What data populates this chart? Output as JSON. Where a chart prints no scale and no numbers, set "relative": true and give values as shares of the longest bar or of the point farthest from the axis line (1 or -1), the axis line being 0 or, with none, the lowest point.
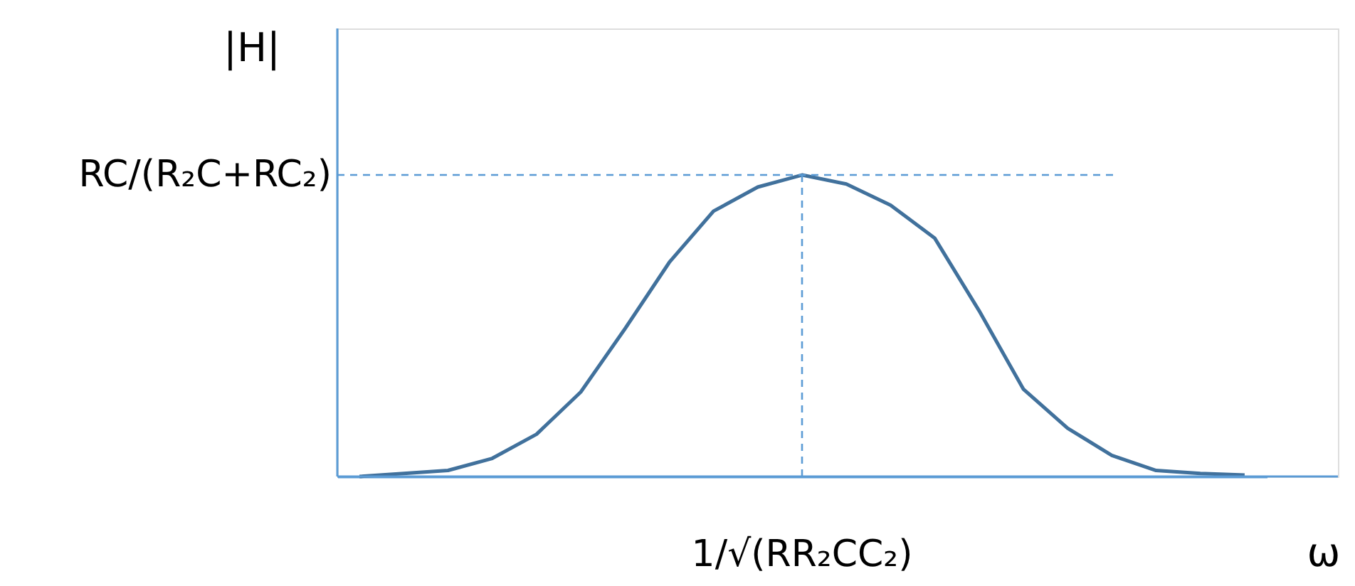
{
  "chart_data": {
    "type": "line",
    "relative": true,
    "xlabel": "ω",
    "ylabel": "|H|",
    "line_style": "solid",
    "categories": [
      null,
      null,
      null,
      null,
      null,
      null,
      null,
      null,
      null,
      null,
      null,
      null,
      null,
      null,
      null,
      null,
      null,
      null,
      null,
      null,
      null
    ],
    "series": [
      {
        "color": "#41719c",
        "values": [
          0,
          0.01,
          0.02,
          0.06,
          0.14,
          0.28,
          0.49,
          0.71,
          0.88,
          0.96,
          1,
          0.97,
          0.9,
          0.79,
          0.55,
          0.29,
          0.16,
          0.07,
          0.02,
          0.01,
          0.005
        ]
      }
    ],
    "ref_lines": [
      {
        "axis": "y",
        "value": 1,
        "label": "RC/(R₂C+RC₂)",
        "color": "#5b9bd5",
        "line_style": "dashed"
      },
      {
        "axis": "x",
        "label": "1/√(RR₂CC₂)",
        "color": "#5b9bd5",
        "line_style": "dashed"
      }
    ]
  }
}
